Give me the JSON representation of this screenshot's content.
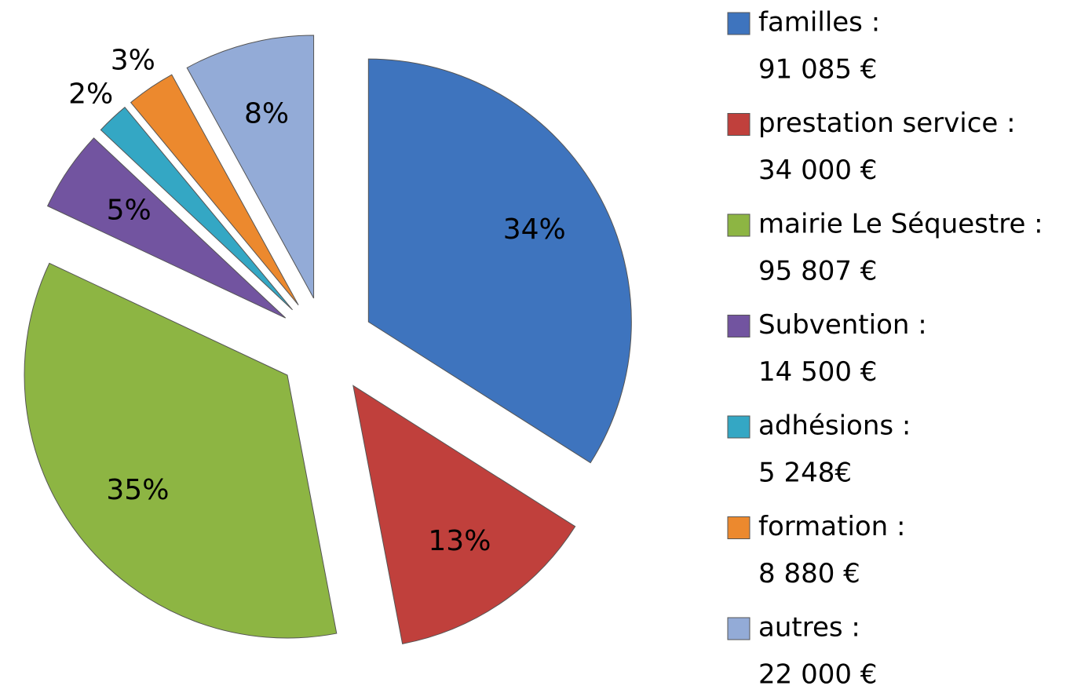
{
  "chart_data": {
    "type": "pie",
    "categories": [
      "familles :",
      "prestation service :",
      "mairie Le Séquestre :",
      "Subvention :",
      "adhésions :",
      "formation :",
      "autres :"
    ],
    "amounts": [
      "91 085 €",
      "34 000 €",
      "95 807 €",
      "14 500 €",
      "5 248€",
      "8 880 €",
      "22 000 €"
    ],
    "values": [
      34,
      13,
      35,
      5,
      2,
      3,
      8
    ],
    "value_labels": [
      "34%",
      "13%",
      "35%",
      "5%",
      "2%",
      "3%",
      "8%"
    ],
    "colors": [
      "#3e74be",
      "#c0403c",
      "#8db543",
      "#7254a0",
      "#34a7c4",
      "#ec892e",
      "#93abd7"
    ]
  }
}
